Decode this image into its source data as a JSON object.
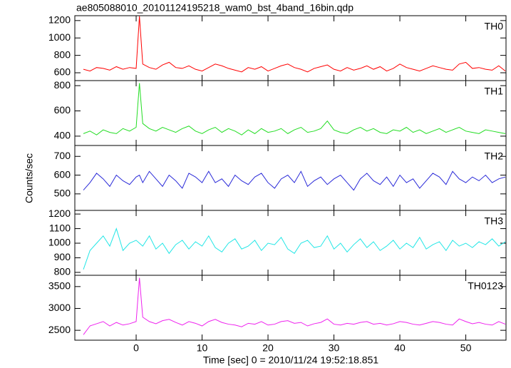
{
  "figure": {
    "title": "ae805088010_20101124195218_wam0_bst_4band_16bin.qdp",
    "ylabel": "Counts/sec",
    "xlabel": "Time [sec] 0 = 2010/11/24 19:52:18.851"
  },
  "chart_data": [
    {
      "type": "line",
      "xlim": [
        -9.3,
        56.1
      ],
      "ylim": [
        510,
        1256
      ],
      "yticks": [
        600,
        800,
        1000,
        1200
      ],
      "x": [
        -8,
        -7,
        -6,
        -5,
        -4,
        -3,
        -2,
        -1,
        0,
        0.5,
        1,
        2,
        3,
        4,
        5,
        6,
        7,
        8,
        9,
        10,
        11,
        12,
        13,
        14,
        15,
        16,
        17,
        18,
        19,
        20,
        21,
        22,
        23,
        24,
        25,
        26,
        27,
        28,
        29,
        30,
        31,
        32,
        33,
        34,
        35,
        36,
        37,
        38,
        39,
        40,
        41,
        42,
        43,
        44,
        45,
        46,
        47,
        48,
        49,
        50,
        51,
        52,
        53,
        54,
        55,
        56
      ],
      "series": [
        {
          "name": "TH0",
          "color": "#ff0000",
          "values": [
            640,
            620,
            660,
            650,
            630,
            670,
            640,
            660,
            650,
            1250,
            700,
            660,
            640,
            690,
            720,
            660,
            650,
            680,
            640,
            620,
            660,
            700,
            680,
            650,
            630,
            610,
            660,
            640,
            670,
            620,
            650,
            680,
            700,
            660,
            640,
            610,
            650,
            670,
            690,
            640,
            620,
            660,
            630,
            650,
            680,
            640,
            670,
            620,
            650,
            700,
            660,
            640,
            620,
            650,
            680,
            660,
            640,
            630,
            700,
            720,
            650,
            660,
            640,
            630,
            680,
            620
          ]
        }
      ]
    },
    {
      "type": "line",
      "xlim": [
        -9.3,
        56.1
      ],
      "ylim": [
        326,
        840
      ],
      "yticks": [
        400,
        600,
        800
      ],
      "x": [
        -8,
        -7,
        -6,
        -5,
        -4,
        -3,
        -2,
        -1,
        0,
        0.5,
        1,
        2,
        3,
        4,
        5,
        6,
        7,
        8,
        9,
        10,
        11,
        12,
        13,
        14,
        15,
        16,
        17,
        18,
        19,
        20,
        21,
        22,
        23,
        24,
        25,
        26,
        27,
        28,
        29,
        30,
        31,
        32,
        33,
        34,
        35,
        36,
        37,
        38,
        39,
        40,
        41,
        42,
        43,
        44,
        45,
        46,
        47,
        48,
        49,
        50,
        51,
        52,
        53,
        54,
        55,
        56
      ],
      "series": [
        {
          "name": "TH1",
          "color": "#22dd22",
          "values": [
            420,
            440,
            410,
            450,
            430,
            420,
            460,
            440,
            470,
            820,
            500,
            460,
            440,
            470,
            450,
            430,
            460,
            480,
            440,
            420,
            450,
            470,
            430,
            460,
            440,
            410,
            450,
            420,
            460,
            430,
            440,
            460,
            420,
            450,
            470,
            430,
            440,
            460,
            520,
            450,
            430,
            420,
            450,
            470,
            440,
            460,
            430,
            420,
            450,
            440,
            470,
            430,
            450,
            420,
            440,
            460,
            430,
            450,
            470,
            440,
            430,
            420,
            450,
            440,
            430,
            420
          ]
        }
      ]
    },
    {
      "type": "line",
      "xlim": [
        -9.3,
        56.1
      ],
      "ylim": [
        412,
        758
      ],
      "yticks": [
        500,
        600,
        700
      ],
      "x": [
        -8,
        -7,
        -6,
        -5,
        -4,
        -3,
        -2,
        -1,
        0,
        0.5,
        1,
        2,
        3,
        4,
        5,
        6,
        7,
        8,
        9,
        10,
        11,
        12,
        13,
        14,
        15,
        16,
        17,
        18,
        19,
        20,
        21,
        22,
        23,
        24,
        25,
        26,
        27,
        28,
        29,
        30,
        31,
        32,
        33,
        34,
        35,
        36,
        37,
        38,
        39,
        40,
        41,
        42,
        43,
        44,
        45,
        46,
        47,
        48,
        49,
        50,
        51,
        52,
        53,
        54,
        55,
        56
      ],
      "series": [
        {
          "name": "TH2",
          "color": "#2a2ad8",
          "values": [
            520,
            560,
            610,
            580,
            540,
            600,
            570,
            550,
            590,
            600,
            560,
            620,
            580,
            540,
            600,
            570,
            530,
            610,
            590,
            560,
            620,
            560,
            580,
            540,
            600,
            570,
            550,
            590,
            610,
            560,
            530,
            580,
            600,
            560,
            620,
            540,
            570,
            590,
            550,
            580,
            600,
            560,
            520,
            580,
            610,
            570,
            550,
            590,
            540,
            600,
            560,
            580,
            530,
            570,
            610,
            590,
            550,
            620,
            580,
            560,
            590,
            570,
            600,
            560,
            580,
            590
          ]
        }
      ]
    },
    {
      "type": "line",
      "xlim": [
        -9.3,
        56.1
      ],
      "ylim": [
        780,
        1225
      ],
      "yticks": [
        800,
        900,
        1000,
        1100,
        1200
      ],
      "x": [
        -8,
        -7,
        -6,
        -5,
        -4,
        -3,
        -2,
        -1,
        0,
        0.5,
        1,
        2,
        3,
        4,
        5,
        6,
        7,
        8,
        9,
        10,
        11,
        12,
        13,
        14,
        15,
        16,
        17,
        18,
        19,
        20,
        21,
        22,
        23,
        24,
        25,
        26,
        27,
        28,
        29,
        30,
        31,
        32,
        33,
        34,
        35,
        36,
        37,
        38,
        39,
        40,
        41,
        42,
        43,
        44,
        45,
        46,
        47,
        48,
        49,
        50,
        51,
        52,
        53,
        54,
        55,
        56
      ],
      "series": [
        {
          "name": "TH3",
          "color": "#22e6e6",
          "values": [
            820,
            950,
            1000,
            1050,
            980,
            1100,
            950,
            1000,
            1020,
            1000,
            980,
            1050,
            960,
            1000,
            930,
            990,
            1020,
            960,
            1010,
            980,
            1050,
            970,
            940,
            1000,
            1030,
            960,
            980,
            1020,
            950,
            1000,
            990,
            1040,
            960,
            930,
            1000,
            1020,
            970,
            980,
            1050,
            960,
            1000,
            940,
            990,
            1030,
            970,
            1010,
            950,
            980,
            1020,
            960,
            1000,
            970,
            1040,
            960,
            990,
            1010,
            950,
            1020,
            980,
            1000,
            970,
            1010,
            990,
            1030,
            980,
            1010
          ]
        }
      ]
    },
    {
      "type": "line",
      "xlim": [
        -9.3,
        56.1
      ],
      "ylim": [
        2274,
        3758
      ],
      "yticks": [
        2500,
        3000,
        3500
      ],
      "xticks": [
        0,
        10,
        20,
        30,
        40,
        50
      ],
      "x": [
        -8,
        -7,
        -6,
        -5,
        -4,
        -3,
        -2,
        -1,
        0,
        0.5,
        1,
        2,
        3,
        4,
        5,
        6,
        7,
        8,
        9,
        10,
        11,
        12,
        13,
        14,
        15,
        16,
        17,
        18,
        19,
        20,
        21,
        22,
        23,
        24,
        25,
        26,
        27,
        28,
        29,
        30,
        31,
        32,
        33,
        34,
        35,
        36,
        37,
        38,
        39,
        40,
        41,
        42,
        43,
        44,
        45,
        46,
        47,
        48,
        49,
        50,
        51,
        52,
        53,
        54,
        55,
        56
      ],
      "series": [
        {
          "name": "TH0123",
          "color": "#ee22ee",
          "values": [
            2400,
            2600,
            2650,
            2700,
            2600,
            2680,
            2620,
            2650,
            2700,
            3700,
            2800,
            2700,
            2650,
            2720,
            2750,
            2680,
            2620,
            2700,
            2660,
            2600,
            2700,
            2750,
            2680,
            2640,
            2620,
            2580,
            2660,
            2640,
            2700,
            2620,
            2640,
            2700,
            2720,
            2660,
            2680,
            2600,
            2650,
            2680,
            2760,
            2640,
            2620,
            2660,
            2640,
            2680,
            2700,
            2640,
            2660,
            2620,
            2650,
            2700,
            2680,
            2640,
            2620,
            2660,
            2700,
            2680,
            2640,
            2620,
            2760,
            2700,
            2650,
            2680,
            2640,
            2620,
            2700,
            2640
          ]
        }
      ]
    }
  ]
}
